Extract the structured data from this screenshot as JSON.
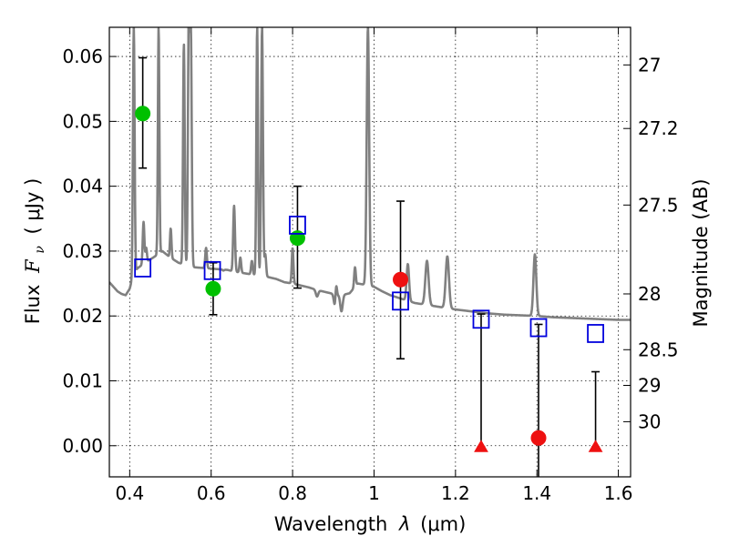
{
  "chart_data": {
    "type": "scatter",
    "xlabel_prefix": "Wavelength",
    "xlabel_symbol": "λ",
    "xlabel_unit": "(μm)",
    "ylabel_prefix": "Flux",
    "ylabel_symbol": "F",
    "ylabel_subscript": "ν",
    "ylabel_unit": "( μJy )",
    "y2label": "Magnitude (AB)",
    "xlim": [
      0.35,
      1.63
    ],
    "ylim": [
      -0.0048,
      0.0645
    ],
    "x_ticks": [
      0.4,
      0.6,
      0.8,
      1.0,
      1.2,
      1.4,
      1.6
    ],
    "x_tick_labels": [
      "0.4",
      "0.6",
      "0.8",
      "1",
      "1.2",
      "1.4",
      "1.6"
    ],
    "y_ticks": [
      0.0,
      0.01,
      0.02,
      0.03,
      0.04,
      0.05,
      0.06
    ],
    "y_tick_labels": [
      "0.00",
      "0.01",
      "0.02",
      "0.03",
      "0.04",
      "0.05",
      "0.06"
    ],
    "y2_ticks": [
      {
        "label": "27",
        "flux": 0.0587
      },
      {
        "label": "27.2",
        "flux": 0.0489
      },
      {
        "label": "27.5",
        "flux": 0.0371
      },
      {
        "label": "28",
        "flux": 0.0234
      },
      {
        "label": "28.5",
        "flux": 0.0148
      },
      {
        "label": "29",
        "flux": 0.0093
      },
      {
        "label": "30",
        "flux": 0.0037
      }
    ],
    "grid": true,
    "model_spectrum": {
      "color": "#808080",
      "continuum": [
        [
          0.35,
          0.0252
        ],
        [
          0.36,
          0.0245
        ],
        [
          0.37,
          0.0238
        ],
        [
          0.38,
          0.0234
        ],
        [
          0.39,
          0.0232
        ],
        [
          0.4,
          0.0242
        ],
        [
          0.41,
          0.0266
        ],
        [
          0.42,
          0.0274
        ],
        [
          0.44,
          0.0283
        ],
        [
          0.46,
          0.0291
        ],
        [
          0.48,
          0.03
        ],
        [
          0.5,
          0.029
        ],
        [
          0.52,
          0.0282
        ],
        [
          0.54,
          0.0278
        ],
        [
          0.56,
          0.0275
        ],
        [
          0.58,
          0.0274
        ],
        [
          0.6,
          0.0273
        ],
        [
          0.62,
          0.0272
        ],
        [
          0.64,
          0.0271
        ],
        [
          0.66,
          0.0268
        ],
        [
          0.68,
          0.0266
        ],
        [
          0.7,
          0.0264
        ],
        [
          0.72,
          0.0262
        ],
        [
          0.74,
          0.026
        ],
        [
          0.76,
          0.0257
        ],
        [
          0.78,
          0.0252
        ],
        [
          0.8,
          0.025
        ],
        [
          0.82,
          0.0247
        ],
        [
          0.84,
          0.0244
        ],
        [
          0.86,
          0.024
        ],
        [
          0.88,
          0.0237
        ],
        [
          0.9,
          0.0234
        ],
        [
          0.92,
          0.0232
        ],
        [
          0.94,
          0.0235
        ],
        [
          0.96,
          0.025
        ],
        [
          0.98,
          0.0248
        ],
        [
          1.0,
          0.0245
        ],
        [
          1.02,
          0.0238
        ],
        [
          1.04,
          0.0232
        ],
        [
          1.06,
          0.0228
        ],
        [
          1.08,
          0.0224
        ],
        [
          1.1,
          0.022
        ],
        [
          1.12,
          0.0218
        ],
        [
          1.14,
          0.0216
        ],
        [
          1.16,
          0.0214
        ],
        [
          1.2,
          0.021
        ],
        [
          1.24,
          0.0207
        ],
        [
          1.28,
          0.0204
        ],
        [
          1.32,
          0.0202
        ],
        [
          1.36,
          0.0201
        ],
        [
          1.4,
          0.02
        ],
        [
          1.44,
          0.0198
        ],
        [
          1.48,
          0.0197
        ],
        [
          1.52,
          0.0196
        ],
        [
          1.56,
          0.0195
        ],
        [
          1.6,
          0.0194
        ],
        [
          1.63,
          0.0194
        ]
      ],
      "lines": [
        {
          "x": 0.41,
          "peak": 0.0645,
          "width": 0.002
        },
        {
          "x": 0.434,
          "peak": 0.0345,
          "width": 0.002
        },
        {
          "x": 0.4405,
          "peak": 0.0305,
          "width": 0.0018
        },
        {
          "x": 0.471,
          "peak": 0.0645,
          "width": 0.0018
        },
        {
          "x": 0.5007,
          "peak": 0.0335,
          "width": 0.0018
        },
        {
          "x": 0.533,
          "peak": 0.062,
          "width": 0.002
        },
        {
          "x": 0.545,
          "peak": 0.0645,
          "width": 0.002
        },
        {
          "x": 0.55,
          "peak": 0.0645,
          "width": 0.0022
        },
        {
          "x": 0.5875,
          "peak": 0.0305,
          "width": 0.002
        },
        {
          "x": 0.63,
          "peak": 0.029,
          "width": 0.002
        },
        {
          "x": 0.6563,
          "peak": 0.037,
          "width": 0.0022
        },
        {
          "x": 0.6717,
          "peak": 0.029,
          "width": 0.002
        },
        {
          "x": 0.7,
          "peak": 0.0285,
          "width": 0.002
        },
        {
          "x": 0.713,
          "peak": 0.0645,
          "width": 0.002
        },
        {
          "x": 0.725,
          "peak": 0.0645,
          "width": 0.0022
        },
        {
          "x": 0.733,
          "peak": 0.0295,
          "width": 0.002
        },
        {
          "x": 0.8,
          "peak": 0.0305,
          "width": 0.002
        },
        {
          "x": 0.9069,
          "peak": 0.0265,
          "width": 0.002
        },
        {
          "x": 0.9532,
          "peak": 0.0275,
          "width": 0.002
        },
        {
          "x": 0.985,
          "peak": 0.0645,
          "width": 0.003
        },
        {
          "x": 1.083,
          "peak": 0.028,
          "width": 0.003
        },
        {
          "x": 1.13,
          "peak": 0.0285,
          "width": 0.004
        },
        {
          "x": 1.18,
          "peak": 0.0292,
          "width": 0.004
        },
        {
          "x": 1.395,
          "peak": 0.0295,
          "width": 0.0035
        }
      ],
      "dips": [
        {
          "x": 0.63,
          "depth": 0.002,
          "width": 0.002
        },
        {
          "x": 0.86,
          "depth": 0.001,
          "width": 0.003
        },
        {
          "x": 0.905,
          "depth": 0.0025,
          "width": 0.003
        },
        {
          "x": 0.92,
          "depth": 0.0025,
          "width": 0.003
        }
      ]
    },
    "series": [
      {
        "marker": "circle",
        "color": "#00c000",
        "points": [
          {
            "x": 0.432,
            "y": 0.0512,
            "yerr_low": 0.0428,
            "yerr_high": 0.0598
          },
          {
            "x": 0.605,
            "y": 0.0242,
            "yerr_low": 0.0202,
            "yerr_high": 0.0282
          },
          {
            "x": 0.812,
            "y": 0.032,
            "yerr_low": 0.0243,
            "yerr_high": 0.04
          }
        ]
      },
      {
        "marker": "circle",
        "color": "#ee1111",
        "points": [
          {
            "x": 1.065,
            "y": 0.0256,
            "yerr_low": 0.0134,
            "yerr_high": 0.0377
          },
          {
            "x": 1.404,
            "y": 0.0012,
            "yerr_low": -0.0048,
            "yerr_high": 0.0187
          }
        ]
      },
      {
        "marker": "triangle",
        "color": "#ee1111",
        "points": [
          {
            "x": 1.263,
            "y": -0.0002,
            "yerr_low": -0.0002,
            "yerr_high": 0.0203
          },
          {
            "x": 1.544,
            "y": -0.0002,
            "yerr_low": -0.0002,
            "yerr_high": 0.0114
          }
        ]
      },
      {
        "marker": "square-open",
        "color": "#0000dd",
        "points": [
          {
            "x": 0.432,
            "y": 0.0274
          },
          {
            "x": 0.603,
            "y": 0.027
          },
          {
            "x": 0.812,
            "y": 0.034
          },
          {
            "x": 1.065,
            "y": 0.0223
          },
          {
            "x": 1.263,
            "y": 0.0195
          },
          {
            "x": 1.404,
            "y": 0.0182
          },
          {
            "x": 1.544,
            "y": 0.0173
          }
        ]
      }
    ]
  }
}
